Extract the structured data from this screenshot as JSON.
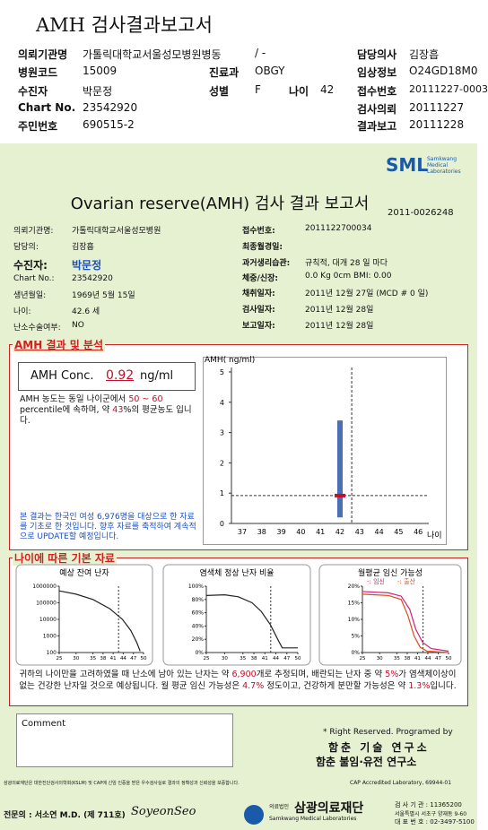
{
  "header": {
    "title": "AMH 검사결과보고서",
    "institution_label": "의뢰기관명",
    "institution": "가톨릭대학교서울성모병원병동",
    "ward": "/ -",
    "doctor_label": "담당의사",
    "doctor": "김장흡",
    "code_label": "병원코드",
    "code": "15009",
    "dept_label": "진료과",
    "dept": "OBGY",
    "clinical_label": "임상정보",
    "clinical": "O24GD18M0",
    "patient_label": "수진자",
    "patient": "박문정",
    "sex_label": "성별",
    "sex": "F",
    "age_label": "나이",
    "age": 42,
    "receipt_label": "접수번호",
    "receipt": "20111227-0003",
    "chart_label": "Chart No.",
    "chart_no": "23542920",
    "request_label": "검사의뢰",
    "request_date": "20111227",
    "rrn_label": "주민번호",
    "rrn": "690515-2",
    "report_label": "결과보고",
    "report_date": "20111228"
  },
  "report": {
    "logo": "SML",
    "logo_sub": "Samkwang Medical Laboratories",
    "title": "Ovarian reserve(AMH) 검사 결과 보고서",
    "report_id": "2011-0026248",
    "left": [
      {
        "label": "의뢰기관명:",
        "value": "가톨릭대학교서울성모병원"
      },
      {
        "label": "담당의:",
        "value": "김장흡"
      },
      {
        "label": "수진자:",
        "value": "박문정"
      },
      {
        "label": "Chart No.:",
        "value": "23542920"
      },
      {
        "label": "생년월일:",
        "value": "1969년 5월 15일"
      },
      {
        "label": "나이:",
        "value": "42.6 세"
      },
      {
        "label": "난소수술여부:",
        "value": "NO"
      }
    ],
    "right": [
      {
        "label": "접수번호:",
        "value": "2011122700034"
      },
      {
        "label": "최종월경일:"
      },
      {
        "label": "과거생리습관:",
        "value": "규칙적, 대개 28 일 마다"
      },
      {
        "label": "체중/신장:",
        "value": "0.0 Kg 0cm BMI: 0.00"
      },
      {
        "label": "채취일자:",
        "value": "2011년 12월 27일 (MCD # 0 일)"
      },
      {
        "label": "검사일자:",
        "value": "2011년 12월 28일"
      },
      {
        "label": "보고일자:",
        "value": "2011년 12월 28일"
      }
    ]
  },
  "analysis": {
    "section_title": "AMH 결과 및 분석",
    "conc_label": "AMH Conc.",
    "conc_value": 0.92,
    "conc_unit": "ng/ml",
    "text_1": "AMH 농도는 동일 나이군에서 ",
    "range": "50 ~ 60",
    "text_2": " percentile에 속하며, 약 ",
    "percent": 43,
    "text_3": "%의 평균농도 입니다.",
    "note": "본 결과는 한국인 여성 6,976명을 대상으로 한 자료를 기초로 한 것입니다. 향후 자료를 축적하여 계속적으로 UPDATE할 예정입니다."
  },
  "amh_chart": {
    "type": "range",
    "y_label": "AMH( ng/ml)",
    "x_label": "나이",
    "categories": [
      37,
      38,
      39,
      40,
      41,
      42,
      43,
      44,
      45,
      46
    ],
    "ylim": [
      0,
      5
    ],
    "yticks": [
      0,
      1,
      2,
      3,
      4,
      5
    ],
    "range": {
      "category": 42,
      "low": 0.2,
      "high": 3.4,
      "color": "#4a6fb5"
    },
    "value": 0.92,
    "value_color": "#c0102a",
    "age": 42.6
  },
  "basic_data": {
    "section_title": "나이에 따른 기본 자료",
    "xlim": [
      25,
      50
    ],
    "xticks": [
      25,
      30,
      35,
      38,
      41,
      44,
      47,
      50
    ],
    "charts": [
      {
        "title": "예상 잔여 난자",
        "log": true,
        "ylim": [
          100,
          1000000
        ],
        "yticks": [
          1000000,
          100000,
          10000,
          1000,
          100
        ]
      },
      {
        "title": "염색체 정상 난자 비율",
        "log": false,
        "ylim": [
          0,
          100
        ],
        "yticks": [
          {
            "value": 100,
            "label": "100%"
          },
          {
            "value": 80,
            "label": "80%"
          },
          {
            "value": 60,
            "label": "60%"
          },
          {
            "value": 40,
            "label": "40%"
          },
          {
            "value": 20,
            "label": "20%"
          },
          {
            "value": 0,
            "label": "0%"
          }
        ]
      },
      {
        "title": "월평균 임신 가능성",
        "log": false,
        "ylim": [
          0,
          20
        ],
        "yticks": [
          {
            "value": 20,
            "label": "20%"
          },
          {
            "value": 15,
            "label": "15%"
          },
          {
            "value": 10,
            "label": "10%"
          },
          {
            "value": 5,
            "label": "5%"
          },
          {
            "value": 0,
            "label": "0%"
          }
        ],
        "legend": [
          {
            "name": "-: 임신",
            "color": "#d0207a"
          },
          {
            "name": "-: 출산",
            "color": "#e04a1a"
          }
        ]
      }
    ],
    "summary": {
      "s1": "귀하의 나이만을 고려하였을 때 난소에 남아 있는 난자는 약 ",
      "eggs": "6,900",
      "s2": "개로 추정되며, 배란되는 난자 중 약 ",
      "normal": "5%",
      "s3": "가 염색체이상이 없는 건강한 난자일 것으로 예상됩니다. 월 평균 임신 가능성은 ",
      "pregnancy": "4.7%",
      "s4": " 정도이고, 건강하게 분만할 가능성은 약 ",
      "birth": "1.3%",
      "s5": "입니다."
    }
  },
  "comment": {
    "label": "Comment"
  },
  "credits": {
    "line1": "* Right Reserved. Programed by",
    "line2": "함춘 기술 연구소",
    "line3": "함춘 불임·유전 연구소"
  },
  "footer": {
    "disclaimer": "삼광의료재단은 대한진단검사의학회(KSLM) 및 CAP에 신임 인증을 받은 우수검사실로 결과의 정확성과 신뢰성을 보증합니다.",
    "cap": "CAP Accredited Laboratory, 69944-01",
    "signer": "전문의 : 서소연 M.D. (제 711호)",
    "signature": "SoyeonSeo",
    "org_small": "의료법인",
    "org": "삼광의료재단",
    "org_en": "Samkwang Medical Laboratories",
    "contact_1": "검 사 기 관 : 11365200",
    "contact_2": "서울특별시 서초구 양재동 9-60",
    "contact_3": "대 표 번 호 : 02-3497-5100"
  }
}
